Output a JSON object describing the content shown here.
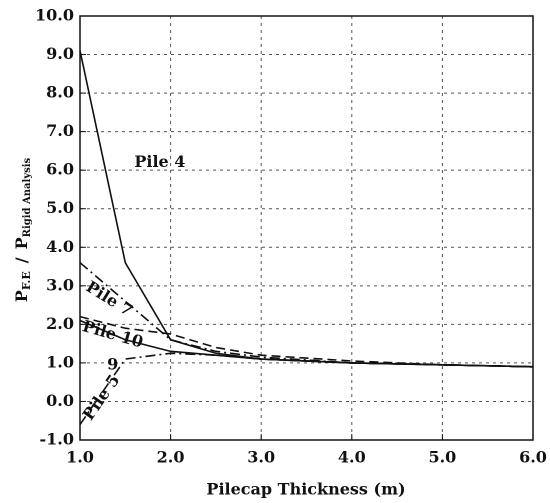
{
  "chart_data": {
    "type": "line",
    "xlabel": "Pilecap Thickness (m)",
    "ylabel": {
      "p1": "P",
      "sub1": "F.E",
      "slash": "/",
      "p2": "P",
      "sub2": "Rigid Analysis"
    },
    "x": [
      1.0,
      1.5,
      2.0,
      2.5,
      3.0,
      4.0,
      5.0,
      6.0
    ],
    "series": [
      {
        "name": "Pile 4",
        "color": "#111111",
        "dash": "solid",
        "values": [
          9.1,
          3.6,
          1.6,
          1.25,
          1.1,
          1.0,
          0.95,
          0.9
        ]
      },
      {
        "name": "Pile 7",
        "color": "#111111",
        "dash": "dashdot",
        "values": [
          3.6,
          2.6,
          1.6,
          1.3,
          1.15,
          1.0,
          0.95,
          0.9
        ]
      },
      {
        "name": "Pile 10",
        "color": "#111111",
        "dash": "dashed",
        "values": [
          2.2,
          1.9,
          1.75,
          1.4,
          1.2,
          1.05,
          0.95,
          0.9
        ]
      },
      {
        "name": "9",
        "color": "#111111",
        "dash": "solid",
        "values": [
          2.1,
          1.6,
          1.3,
          1.2,
          1.1,
          1.0,
          0.95,
          0.9
        ]
      },
      {
        "name": "Pile 5",
        "color": "#111111",
        "dash": "dashdot",
        "values": [
          -0.6,
          1.1,
          1.25,
          1.2,
          1.1,
          1.0,
          0.95,
          0.9
        ]
      }
    ],
    "xlim": [
      1.0,
      6.0
    ],
    "xticks": [
      {
        "value": 1,
        "label": "1.0"
      },
      {
        "value": 2,
        "label": "2.0"
      },
      {
        "value": 3,
        "label": "3.0"
      },
      {
        "value": 4,
        "label": "4.0"
      },
      {
        "value": 5,
        "label": "5.0"
      },
      {
        "value": 6,
        "label": "6.0"
      }
    ],
    "ylim": [
      -1.0,
      10.0
    ],
    "yticks": [
      {
        "value": -1,
        "label": "-1.0"
      },
      {
        "value": 0,
        "label": "0.0"
      },
      {
        "value": 1,
        "label": "1.0"
      },
      {
        "value": 2,
        "label": "2.0"
      },
      {
        "value": 3,
        "label": "3.0"
      },
      {
        "value": 4,
        "label": "4.0"
      },
      {
        "value": 5,
        "label": "5.0"
      },
      {
        "value": 6,
        "label": "6.0"
      },
      {
        "value": 7,
        "label": "7.0"
      },
      {
        "value": 8,
        "label": "8.0"
      },
      {
        "value": 9,
        "label": "9.0"
      },
      {
        "value": 10,
        "label": "10.0"
      }
    ],
    "grid": true
  }
}
